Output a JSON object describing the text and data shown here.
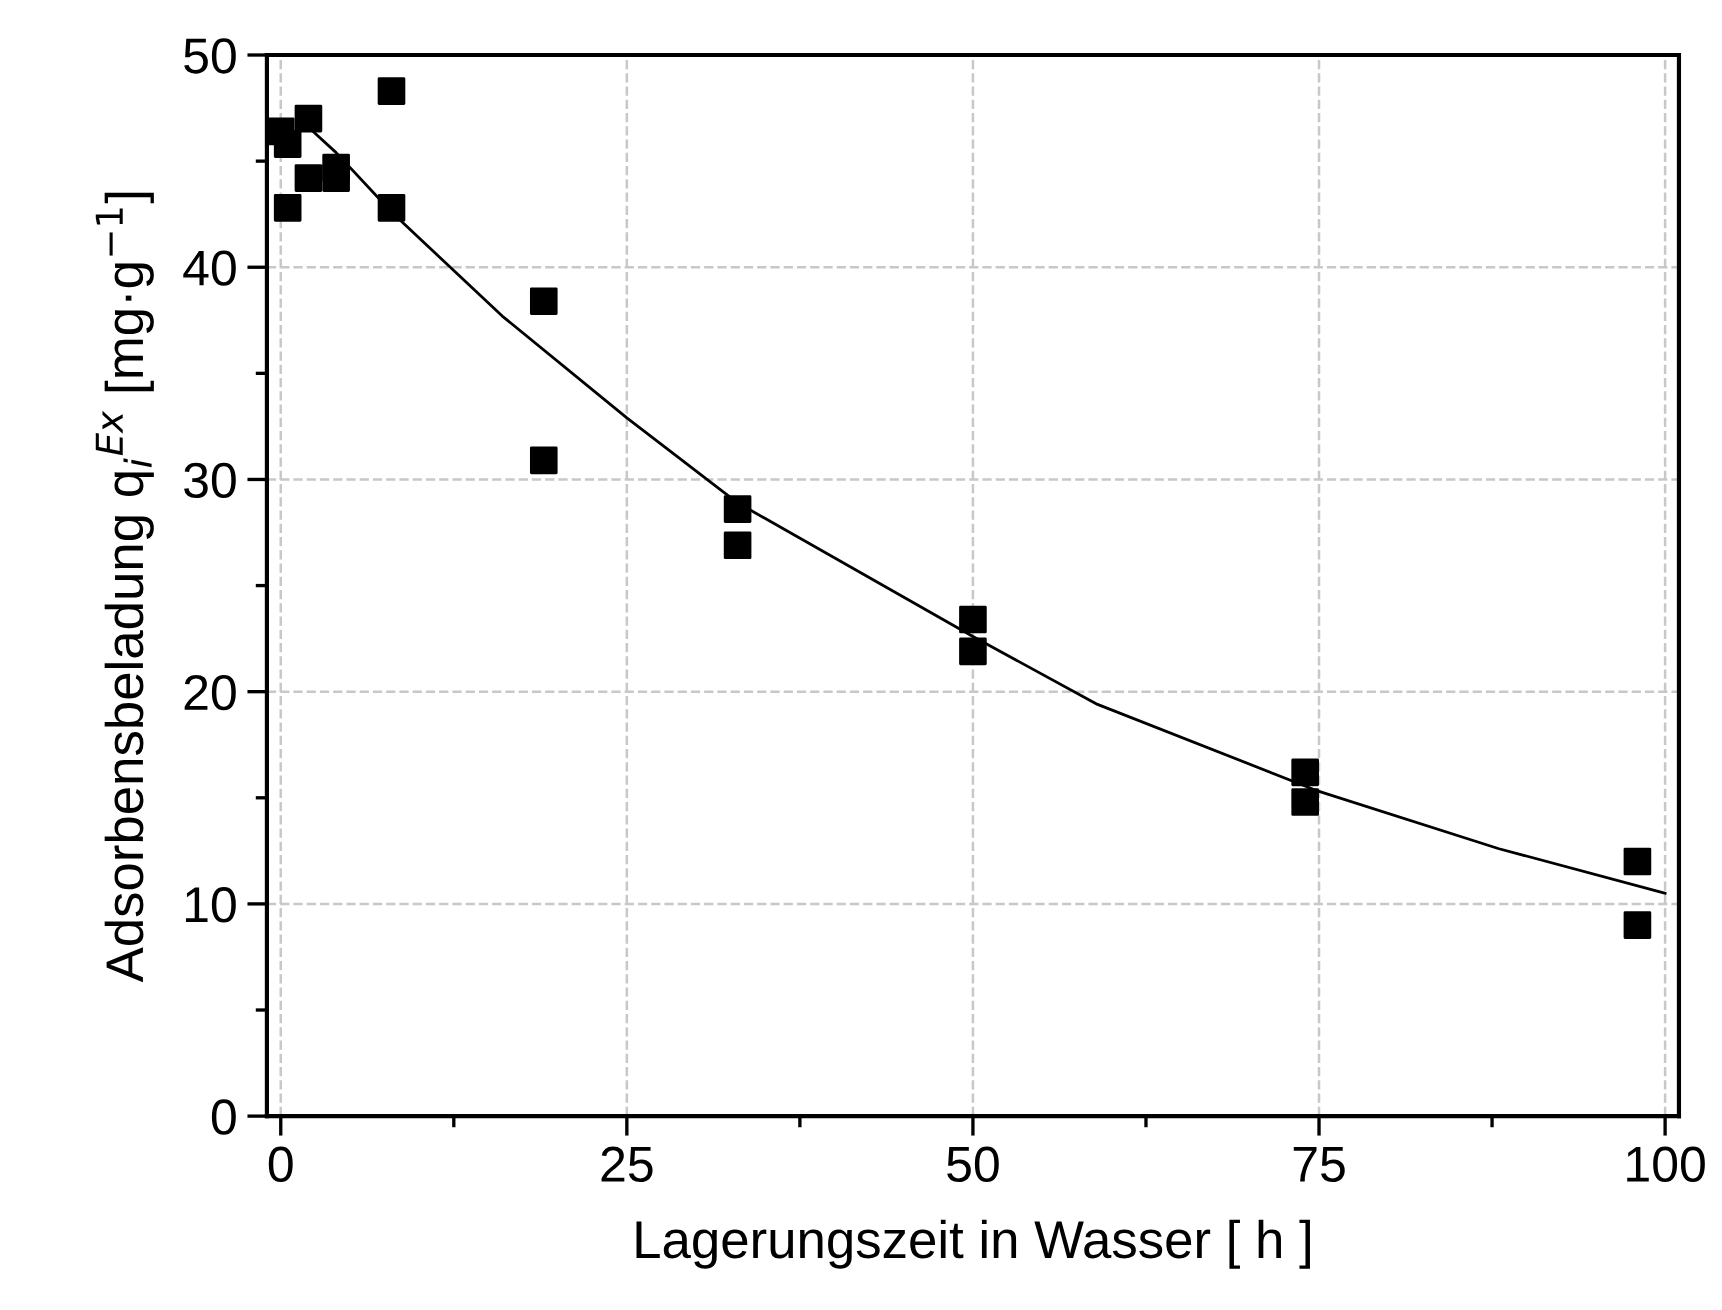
{
  "chart_data": {
    "type": "scatter",
    "xlabel": "Lagerungszeit in Wasser [ h ]",
    "ylabel": "Adsorbensbeladung q$_{i}$$^{Ex}$ [mg·g$^{−1}$]",
    "xlim": [
      -1,
      101
    ],
    "xticks": [
      0,
      25,
      50,
      75,
      100
    ],
    "ylim": [
      0,
      50
    ],
    "yticks": [
      0,
      10,
      20,
      30,
      40,
      50
    ],
    "grid": true,
    "marker": "square",
    "series": [
      {
        "color": "#000000",
        "x": [
          0,
          0.5,
          0.5,
          2,
          2,
          4,
          4,
          8,
          8,
          19,
          19,
          33,
          33,
          50,
          50,
          74,
          74,
          98,
          98
        ],
        "values": [
          46.4,
          45.8,
          42.8,
          47.0,
          44.2,
          44.7,
          44.2,
          48.3,
          42.8,
          38.4,
          30.9,
          28.6,
          26.9,
          23.4,
          21.9,
          16.2,
          14.8,
          12.0,
          9.0
        ]
      },
      {
        "type": "line",
        "color": "#000000",
        "marker": "none",
        "line_style": "solid",
        "x": [
          2,
          4,
          8,
          16,
          25,
          33,
          50,
          59,
          75,
          88,
          100
        ],
        "values": [
          46.6,
          45.4,
          42.6,
          37.7,
          32.9,
          28.9,
          22.6,
          19.4,
          15.3,
          12.6,
          10.5
        ]
      }
    ]
  }
}
